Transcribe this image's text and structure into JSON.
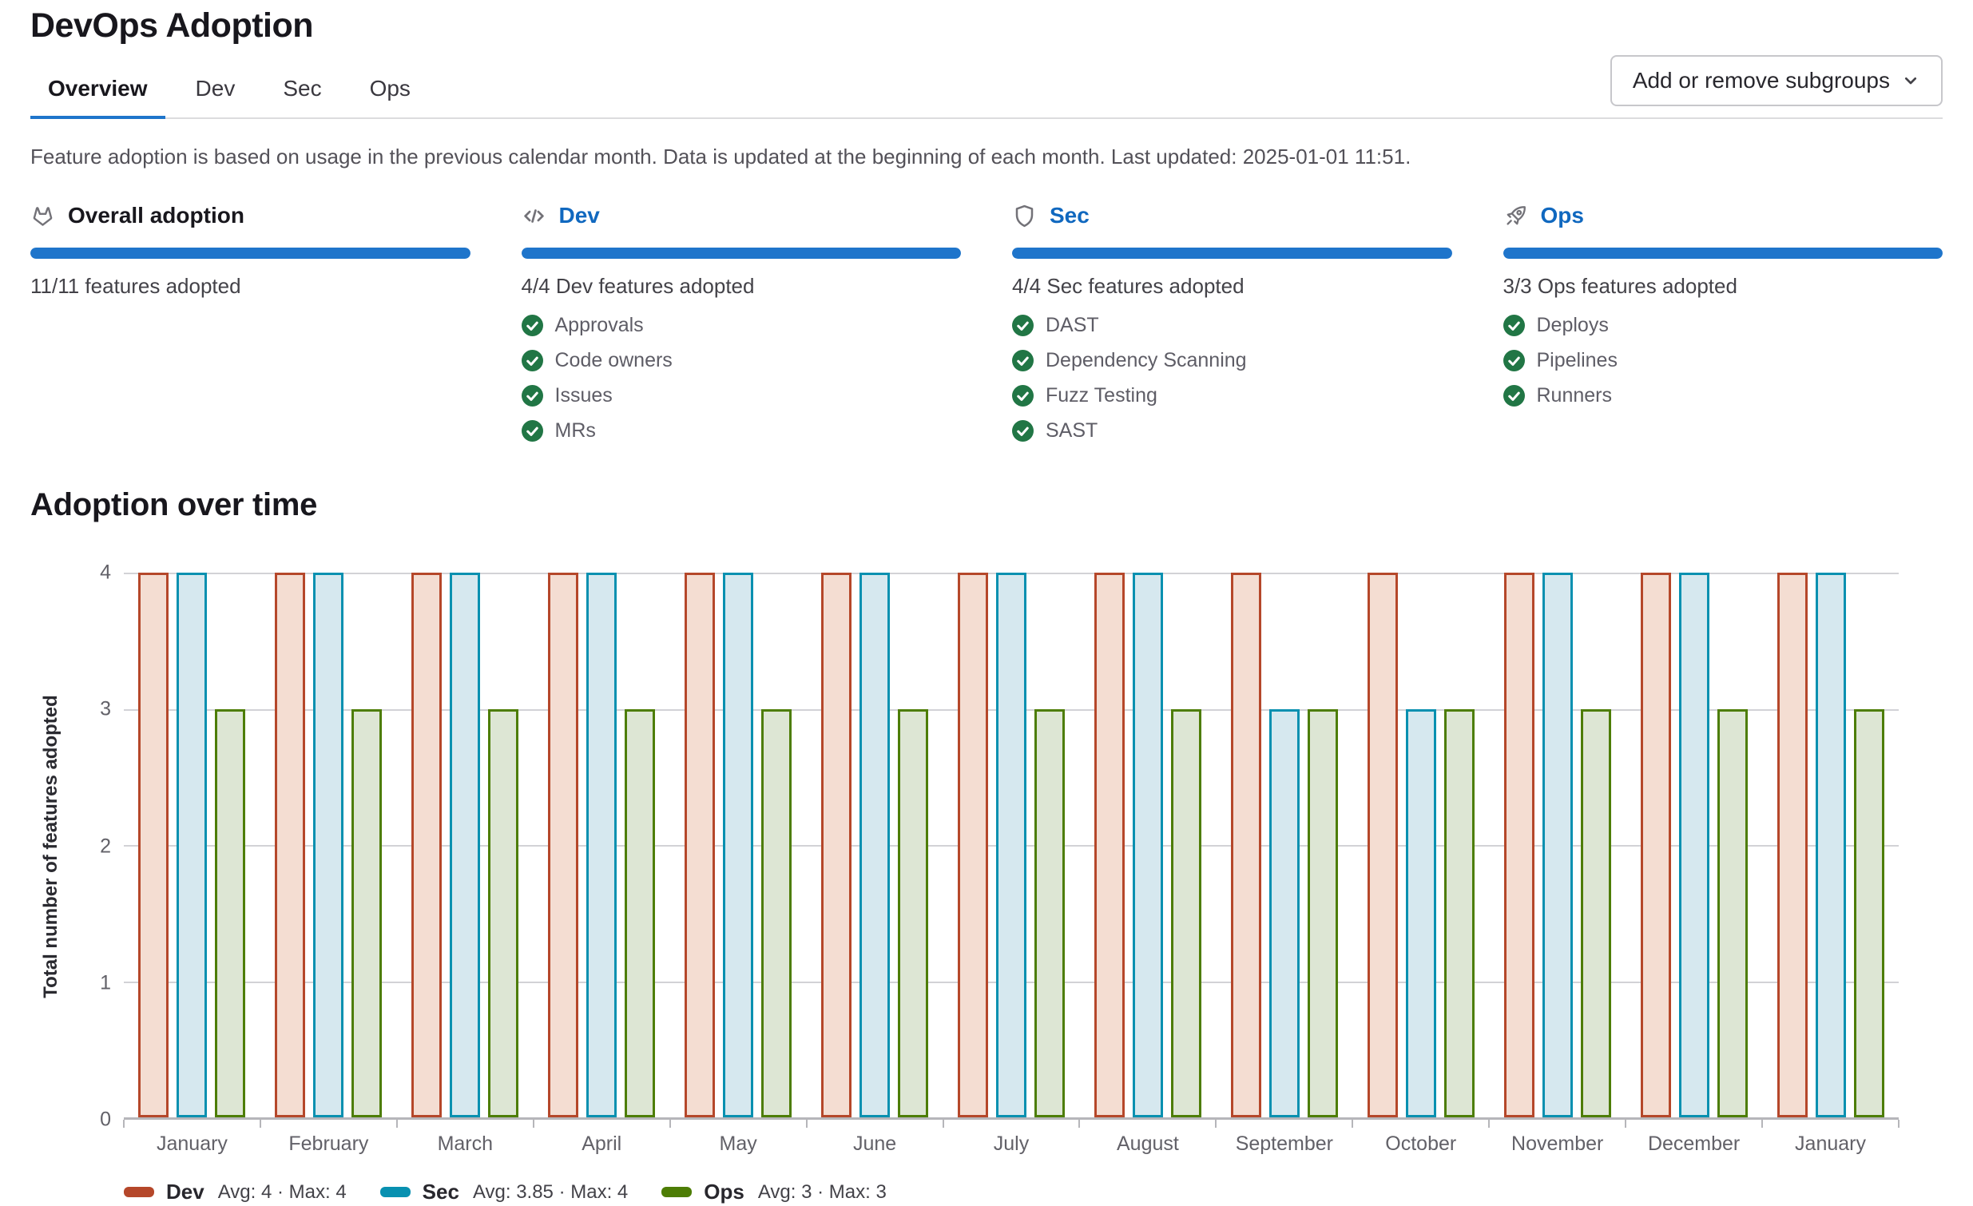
{
  "header": {
    "title": "DevOps Adoption",
    "tabs": [
      {
        "label": "Overview",
        "active": true
      },
      {
        "label": "Dev",
        "active": false
      },
      {
        "label": "Sec",
        "active": false
      },
      {
        "label": "Ops",
        "active": false
      }
    ],
    "subgroups_button_label": "Add or remove subgroups"
  },
  "info_text": "Feature adoption is based on usage in the previous calendar month. Data is updated at the beginning of each month. Last updated: 2025-01-01 11:51.",
  "colors": {
    "accent_blue": "#1f75cb",
    "link_blue": "#1068bf",
    "check_green": "#217645"
  },
  "adoption_cards": [
    {
      "icon": "tanuki-icon",
      "title": "Overall adoption",
      "is_link": false,
      "progress_percent": 100,
      "progress_label": "11/11 features adopted",
      "features": []
    },
    {
      "icon": "code-icon",
      "title": "Dev",
      "is_link": true,
      "progress_percent": 100,
      "progress_label": "4/4 Dev features adopted",
      "features": [
        "Approvals",
        "Code owners",
        "Issues",
        "MRs"
      ]
    },
    {
      "icon": "shield-icon",
      "title": "Sec",
      "is_link": true,
      "progress_percent": 100,
      "progress_label": "4/4 Sec features adopted",
      "features": [
        "DAST",
        "Dependency Scanning",
        "Fuzz Testing",
        "SAST"
      ]
    },
    {
      "icon": "rocket-icon",
      "title": "Ops",
      "is_link": true,
      "progress_percent": 100,
      "progress_label": "3/3 Ops features adopted",
      "features": [
        "Deploys",
        "Pipelines",
        "Runners"
      ]
    }
  ],
  "chart_data": {
    "type": "bar",
    "title": "Adoption over time",
    "ylabel": "Total number of features adopted",
    "xlabel": "",
    "ylim": [
      0,
      4
    ],
    "yticks": [
      0,
      1,
      2,
      3,
      4
    ],
    "grid": true,
    "legend_position": "bottom",
    "categories": [
      "January",
      "February",
      "March",
      "April",
      "May",
      "June",
      "July",
      "August",
      "September",
      "October",
      "November",
      "December",
      "January"
    ],
    "series": [
      {
        "name": "Dev",
        "stroke": "#b5472a",
        "fill": "#f4ddd2",
        "values": [
          4,
          4,
          4,
          4,
          4,
          4,
          4,
          4,
          4,
          4,
          4,
          4,
          4
        ],
        "avg": "4",
        "max": "4"
      },
      {
        "name": "Sec",
        "stroke": "#0890b0",
        "fill": "#d6e8ef",
        "values": [
          4,
          4,
          4,
          4,
          4,
          4,
          4,
          4,
          3,
          3,
          4,
          4,
          4
        ],
        "avg": "3.85",
        "max": "4"
      },
      {
        "name": "Ops",
        "stroke": "#4d7d05",
        "fill": "#dde6d4",
        "values": [
          3,
          3,
          3,
          3,
          3,
          3,
          3,
          3,
          3,
          3,
          3,
          3,
          3
        ],
        "avg": "3",
        "max": "3"
      }
    ],
    "legend": [
      {
        "name": "Dev",
        "stats": "Avg: 4 · Max: 4"
      },
      {
        "name": "Sec",
        "stats": "Avg: 3.85 · Max: 4"
      },
      {
        "name": "Ops",
        "stats": "Avg: 3 · Max: 3"
      }
    ]
  }
}
